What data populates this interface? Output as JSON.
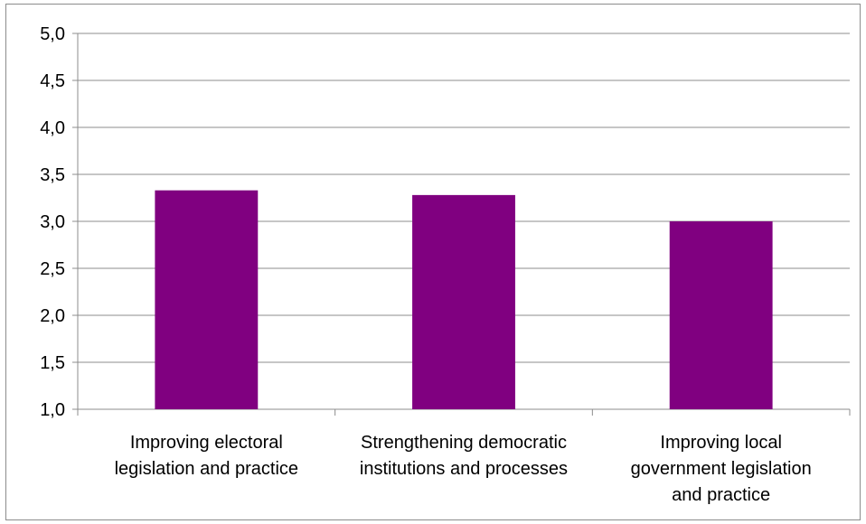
{
  "chart_data": {
    "type": "bar",
    "categories": [
      [
        "Improving electoral",
        "legislation and practice"
      ],
      [
        "Strengthening democratic",
        "institutions and processes"
      ],
      [
        "Improving local",
        "government legislation",
        "and practice"
      ]
    ],
    "values": [
      3.33,
      3.28,
      3.0
    ],
    "ylim": [
      1.0,
      5.0
    ],
    "yticks": [
      "1,0",
      "1,5",
      "2,0",
      "2,5",
      "3,0",
      "3,5",
      "4,0",
      "4,5",
      "5,0"
    ],
    "ytick_step": 0.5,
    "bar_color": "#800080",
    "grid": true,
    "legend": "none"
  }
}
